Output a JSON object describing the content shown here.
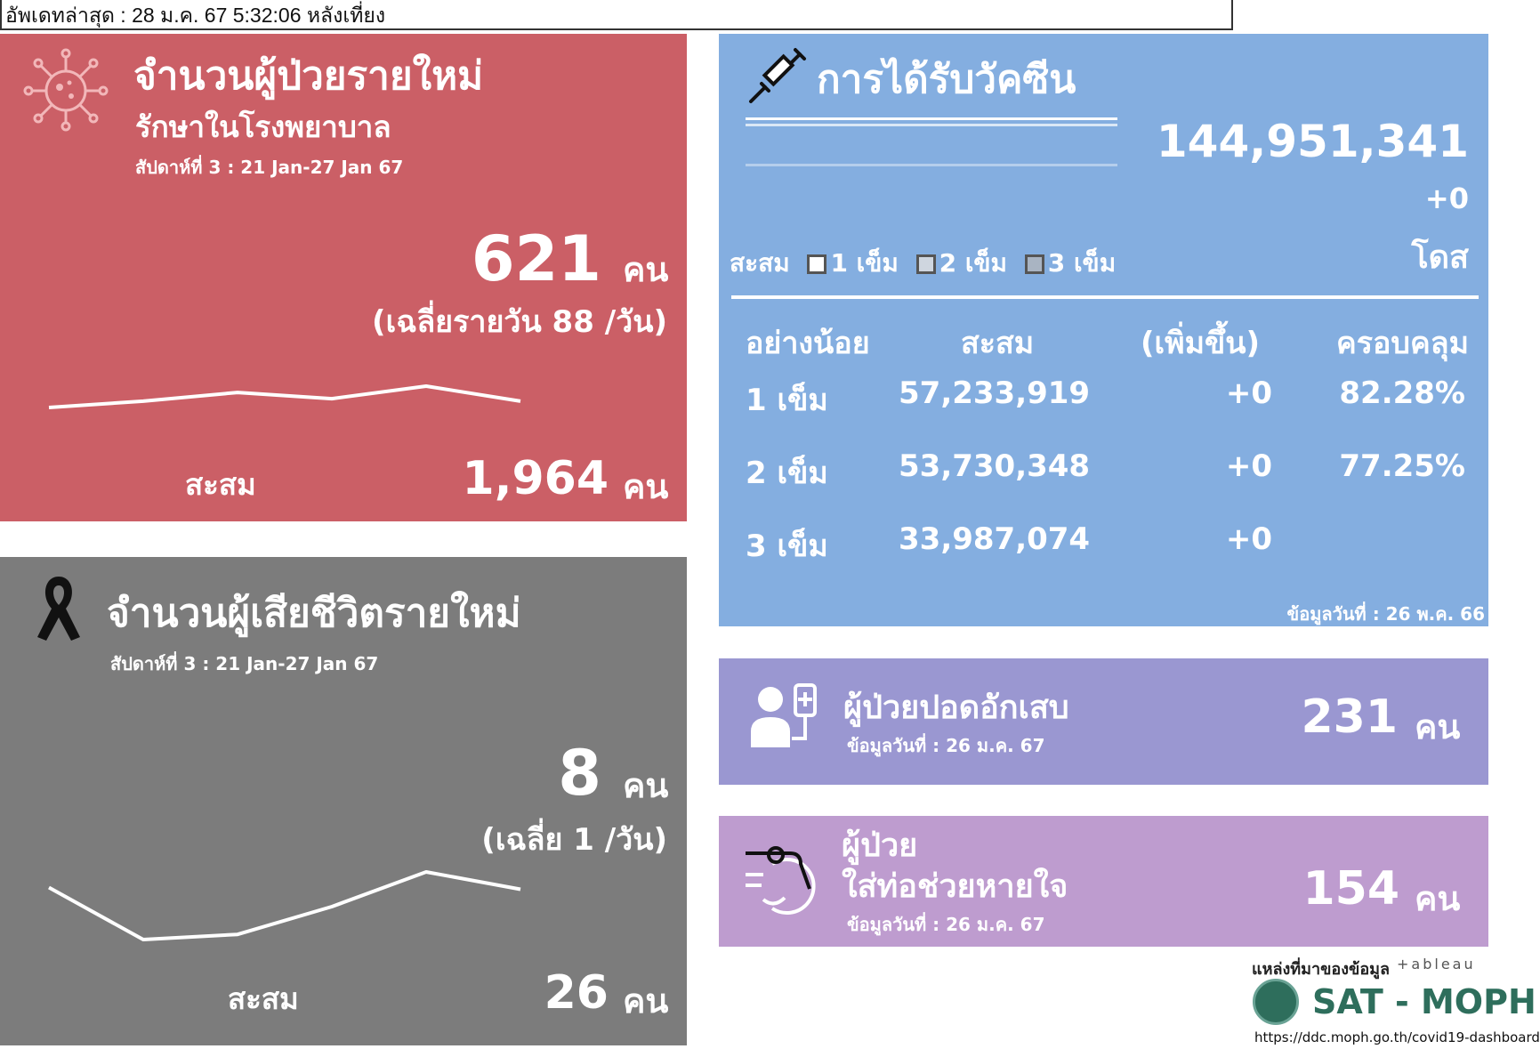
{
  "update_bar": {
    "text": "อัพเดทล่าสุด : 28 ม.ค. 67 5:32:06 หลังเที่ยง"
  },
  "new_cases": {
    "title": "จำนวนผู้ป่วยรายใหม่",
    "subtitle": "รักษาในโรงพยาบาล",
    "week": "สัปดาห์ที่ 3 : 21 Jan-27 Jan 67",
    "value": "621",
    "unit": "คน",
    "avg": "(เฉลี่ยรายวัน 88 /วัน)",
    "cumulative_label": "สะสม",
    "cumulative_value": "1,964",
    "cumulative_unit": "คน",
    "icon": "virus-icon",
    "trend": [
      74,
      84,
      98,
      88,
      108,
      84
    ]
  },
  "deaths": {
    "title": "จำนวนผู้เสียชีวิตรายใหม่",
    "week": "สัปดาห์ที่  3 : 21 Jan-27 Jan 67",
    "value": "8",
    "unit": "คน",
    "avg": "(เฉลี่ย 1 /วัน)",
    "cumulative_label": "สะสม",
    "cumulative_value": "26",
    "cumulative_unit": "คน",
    "icon": "mourning-ribbon-icon",
    "trend": [
      7,
      4,
      4.3,
      5.9,
      7.9,
      6.9
    ]
  },
  "vaccine": {
    "title": "การได้รับวัคซีน",
    "total": "144,951,341",
    "increase": "+0",
    "unit": "โดส",
    "legend_prefix": "สะสม",
    "legend": [
      "1 เข็ม",
      "2 เข็ม",
      "3 เข็ม"
    ],
    "icon": "syringe-icon",
    "table": {
      "headers": [
        "อย่างน้อย",
        "สะสม",
        "(เพิ่มขึ้น)",
        "ครอบคลุม"
      ],
      "rows": [
        {
          "dose": "1 เข็ม",
          "cumulative": "57,233,919",
          "increase": "+0",
          "coverage": "82.28%"
        },
        {
          "dose": "2 เข็ม",
          "cumulative": "53,730,348",
          "increase": "+0",
          "coverage": "77.25%"
        },
        {
          "dose": "3 เข็ม",
          "cumulative": "33,987,074",
          "increase": "+0",
          "coverage": ""
        }
      ]
    },
    "data_date": "ข้อมูลวันที่ : 26 พ.ค. 66"
  },
  "pneumonia": {
    "title": "ผู้ป่วยปอดอักเสบ",
    "data_date": "ข้อมูลวันที่ : 26 ม.ค. 67",
    "value": "231",
    "unit": "คน",
    "icon": "patient-iv-icon"
  },
  "ventilator": {
    "title_line1": "ผู้ป่วย",
    "title_line2": "ใส่ท่อช่วยหายใจ",
    "data_date": "ข้อมูลวันที่ : 26 ม.ค. 67",
    "value": "154",
    "unit": "คน",
    "icon": "ventilator-icon"
  },
  "source": {
    "label": "แหล่งที่มาของข้อมูล",
    "tableau": "+ableau",
    "logo_text": "SAT - MOPH",
    "url": "https://ddc.moph.go.th/covid19-dashboard"
  }
}
